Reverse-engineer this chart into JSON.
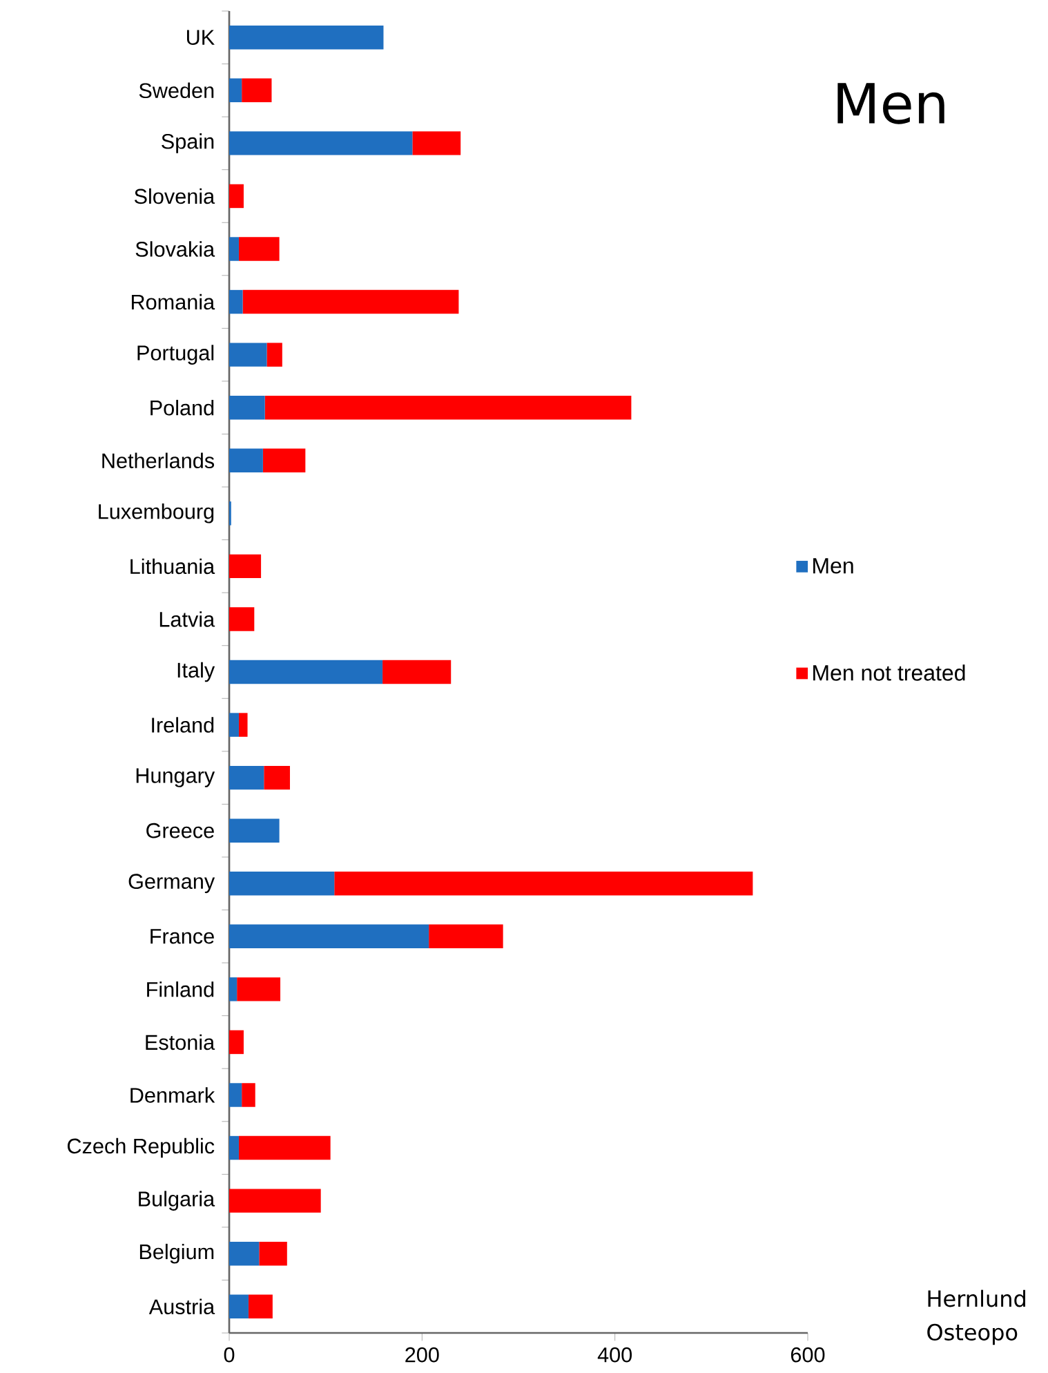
{
  "chart_data": {
    "type": "bar",
    "orientation": "horizontal",
    "stacked": true,
    "title": "Men",
    "categories": [
      "UK",
      "Sweden",
      "Spain",
      "Slovenia",
      "Slovakia",
      "Romania",
      "Portugal",
      "Poland",
      "Netherlands",
      "Luxembourg",
      "Lithuania",
      "Latvia",
      "Italy",
      "Ireland",
      "Hungary",
      "Greece",
      "Germany",
      "France",
      "Finland",
      "Estonia",
      "Denmark",
      "Czech Republic",
      "Bulgaria",
      "Belgium",
      "Austria"
    ],
    "series": [
      {
        "name": "Men",
        "color": "#1f6fc0",
        "values": [
          160,
          13,
          190,
          0,
          10,
          14,
          39,
          37,
          35,
          2,
          0,
          0,
          159,
          10,
          36,
          52,
          109,
          207,
          8,
          0,
          13,
          10,
          0,
          31,
          20
        ]
      },
      {
        "name": "Men not treated",
        "color": "#ff0000",
        "values": [
          0,
          31,
          50,
          15,
          42,
          224,
          16,
          380,
          44,
          0,
          33,
          26,
          71,
          9,
          27,
          0,
          434,
          77,
          45,
          15,
          14,
          95,
          95,
          29,
          25
        ]
      }
    ],
    "xlim": [
      0,
      600
    ],
    "xticks": [
      0,
      200,
      400,
      600
    ],
    "legend": "right",
    "annotations": [
      "Hernlund",
      "Osteopo"
    ]
  }
}
